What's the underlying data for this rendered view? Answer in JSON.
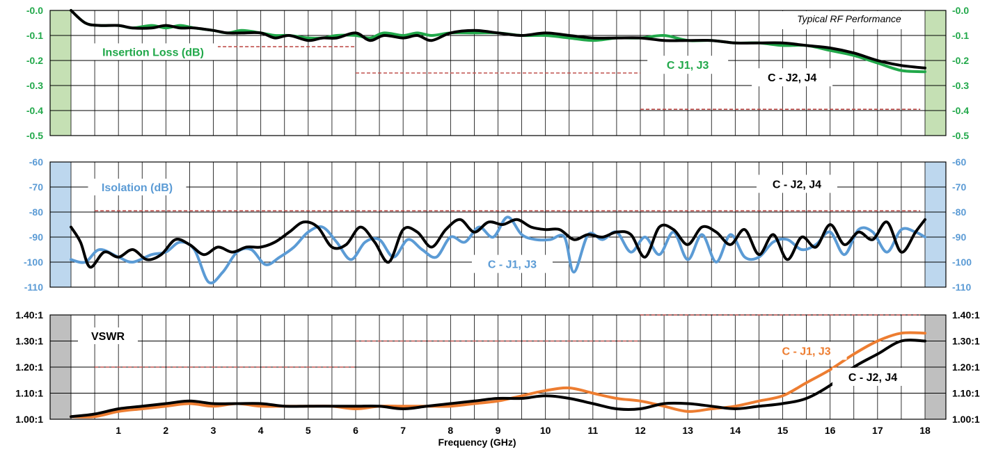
{
  "colors": {
    "green": "#21a84a",
    "blue": "#5b9bd5",
    "orange": "#ed7d31",
    "black": "#000000",
    "spec": "#c0504d",
    "green_band": "#c5e0b4",
    "blue_band": "#bdd7ee",
    "gray_band": "#bfbfbf",
    "tick_green": "#21a84a",
    "tick_blue": "#5b9bd5",
    "tick_black": "#000000"
  },
  "chart_data": [
    {
      "type": "line",
      "annotation": "Typical RF Performance",
      "ylabel": "Insertion Loss (dB)",
      "ylim": [
        -0.5,
        0.0
      ],
      "y_ticks": [
        "-0.0",
        "-0.1",
        "-0.2",
        "-0.3",
        "-0.4",
        "-0.5"
      ],
      "x_range": [
        0,
        18
      ],
      "series": [
        {
          "name": "C J1, J3",
          "color": "green",
          "x": [
            0,
            0.3,
            0.6,
            1,
            1.3,
            1.7,
            2,
            2.3,
            2.6,
            3,
            3.3,
            3.6,
            4,
            4.3,
            4.6,
            5,
            5.3,
            5.6,
            6,
            6.3,
            6.6,
            7,
            7.3,
            7.6,
            8,
            8.5,
            9,
            9.5,
            10,
            10.5,
            11,
            11.5,
            12,
            12.5,
            13,
            13.5,
            14,
            14.5,
            15,
            15.5,
            16,
            16.5,
            17,
            17.5,
            18
          ],
          "y": [
            -0.0,
            -0.05,
            -0.06,
            -0.06,
            -0.07,
            -0.06,
            -0.07,
            -0.06,
            -0.07,
            -0.08,
            -0.09,
            -0.08,
            -0.09,
            -0.1,
            -0.1,
            -0.11,
            -0.11,
            -0.1,
            -0.1,
            -0.11,
            -0.09,
            -0.1,
            -0.09,
            -0.1,
            -0.09,
            -0.09,
            -0.09,
            -0.1,
            -0.1,
            -0.11,
            -0.12,
            -0.11,
            -0.11,
            -0.1,
            -0.12,
            -0.12,
            -0.13,
            -0.13,
            -0.14,
            -0.14,
            -0.16,
            -0.18,
            -0.21,
            -0.24,
            -0.245
          ]
        },
        {
          "name": "C - J2, J4",
          "color": "black",
          "x": [
            0,
            0.3,
            0.6,
            1,
            1.3,
            1.7,
            2,
            2.3,
            2.6,
            3,
            3.3,
            3.6,
            4,
            4.3,
            4.6,
            5,
            5.3,
            5.6,
            6,
            6.3,
            6.6,
            7,
            7.3,
            7.6,
            8,
            8.5,
            9,
            9.5,
            10,
            10.5,
            11,
            11.5,
            12,
            12.5,
            13,
            13.5,
            14,
            14.5,
            15,
            15.5,
            16,
            16.5,
            17,
            17.5,
            18
          ],
          "y": [
            -0.0,
            -0.05,
            -0.06,
            -0.06,
            -0.07,
            -0.07,
            -0.06,
            -0.07,
            -0.07,
            -0.08,
            -0.09,
            -0.09,
            -0.09,
            -0.11,
            -0.1,
            -0.12,
            -0.11,
            -0.11,
            -0.09,
            -0.12,
            -0.1,
            -0.11,
            -0.1,
            -0.12,
            -0.09,
            -0.08,
            -0.09,
            -0.1,
            -0.09,
            -0.1,
            -0.11,
            -0.11,
            -0.11,
            -0.12,
            -0.12,
            -0.12,
            -0.13,
            -0.13,
            -0.13,
            -0.14,
            -0.15,
            -0.17,
            -0.2,
            -0.22,
            -0.23
          ]
        }
      ],
      "spec_lines": [
        {
          "x": [
            0.5,
            6.0
          ],
          "y": -0.145
        },
        {
          "x": [
            6.0,
            12.0
          ],
          "y": -0.25
        },
        {
          "x": [
            12.0,
            17.9
          ],
          "y": -0.395
        }
      ],
      "label_positions": {
        "C J1, J3": [
          13.0,
          -0.22
        ],
        "C - J2, J4": [
          15.2,
          -0.27
        ]
      }
    },
    {
      "type": "line",
      "ylabel": "Isolation (dB)",
      "ylim": [
        -110,
        -60
      ],
      "y_ticks": [
        "-60",
        "-70",
        "-80",
        "-90",
        "-100",
        "-110"
      ],
      "x_range": [
        0,
        18
      ],
      "series": [
        {
          "name": "C - J1, J3",
          "color": "blue",
          "x": [
            0,
            0.3,
            0.6,
            1,
            1.3,
            1.7,
            2,
            2.3,
            2.6,
            2.9,
            3.2,
            3.5,
            3.8,
            4.1,
            4.4,
            4.7,
            5,
            5.3,
            5.6,
            5.9,
            6.2,
            6.5,
            6.8,
            7.1,
            7.4,
            7.7,
            8,
            8.3,
            8.6,
            8.9,
            9.2,
            9.5,
            9.8,
            10.1,
            10.4,
            10.6,
            10.9,
            11.2,
            11.5,
            11.8,
            12.1,
            12.4,
            12.7,
            13,
            13.3,
            13.6,
            13.9,
            14.2,
            14.5,
            14.8,
            15.1,
            15.4,
            15.7,
            16,
            16.3,
            16.6,
            16.9,
            17.2,
            17.5,
            17.8,
            18
          ],
          "y": [
            -99,
            -100,
            -95,
            -98,
            -100,
            -97,
            -96,
            -92,
            -95,
            -108,
            -104,
            -96,
            -95,
            -101,
            -98,
            -94,
            -88,
            -86,
            -92,
            -99,
            -92,
            -91,
            -98,
            -91,
            -95,
            -98,
            -90,
            -92,
            -86,
            -90,
            -82,
            -89,
            -91,
            -91,
            -90,
            -104,
            -89,
            -91,
            -88,
            -96,
            -90,
            -97,
            -88,
            -99,
            -89,
            -100,
            -89,
            -98,
            -98,
            -92,
            -91,
            -95,
            -93,
            -88,
            -97,
            -87,
            -88,
            -96,
            -87,
            -88,
            -90
          ]
        },
        {
          "name": "C - J2, J4",
          "color": "black",
          "x": [
            0,
            0.2,
            0.4,
            0.7,
            1,
            1.3,
            1.6,
            1.9,
            2.2,
            2.5,
            2.8,
            3.1,
            3.4,
            3.7,
            4,
            4.3,
            4.6,
            4.9,
            5.2,
            5.5,
            5.8,
            6.1,
            6.4,
            6.7,
            7,
            7.3,
            7.6,
            7.9,
            8.2,
            8.5,
            8.8,
            9.1,
            9.4,
            9.7,
            10,
            10.3,
            10.6,
            10.9,
            11.2,
            11.5,
            11.8,
            12.1,
            12.4,
            12.7,
            13,
            13.3,
            13.6,
            13.9,
            14.2,
            14.5,
            14.8,
            15.1,
            15.4,
            15.7,
            16,
            16.3,
            16.6,
            16.9,
            17.2,
            17.5,
            17.8,
            18
          ],
          "y": [
            -86,
            -92,
            -102,
            -96,
            -98,
            -95,
            -99,
            -97,
            -91,
            -93,
            -97,
            -94,
            -96,
            -94,
            -94,
            -92,
            -88,
            -84,
            -86,
            -94,
            -93,
            -86,
            -92,
            -100,
            -87,
            -88,
            -94,
            -87,
            -83,
            -88,
            -84,
            -85,
            -83,
            -86,
            -87,
            -87,
            -91,
            -89,
            -90,
            -88,
            -89,
            -98,
            -86,
            -87,
            -93,
            -86,
            -88,
            -93,
            -87,
            -97,
            -89,
            -99,
            -90,
            -94,
            -85,
            -93,
            -88,
            -91,
            -84,
            -96,
            -88,
            -83
          ]
        }
      ],
      "spec_lines": [
        {
          "x": [
            0.5,
            17.9
          ],
          "y": -79.5
        }
      ],
      "label_positions": {
        "C - J1, J3": [
          9.3,
          -101
        ],
        "C - J2, J4": [
          15.3,
          -69
        ]
      }
    },
    {
      "type": "line",
      "ylabel": "VSWR",
      "xlabel": "Frequency (GHz)",
      "ylim": [
        1.0,
        1.4
      ],
      "y_ticks": [
        "1.40:1",
        "1.30:1",
        "1.20:1",
        "1.10:1",
        "1.00:1"
      ],
      "x_ticks": [
        "1",
        "2",
        "3",
        "4",
        "5",
        "6",
        "7",
        "8",
        "9",
        "10",
        "11",
        "12",
        "13",
        "14",
        "15",
        "16",
        "17",
        "18"
      ],
      "x_range": [
        0,
        18
      ],
      "series": [
        {
          "name": "C - J1, J3",
          "color": "orange",
          "x": [
            0,
            0.5,
            1,
            1.5,
            2,
            2.5,
            3,
            3.5,
            4,
            4.5,
            5,
            5.5,
            6,
            6.5,
            7,
            7.5,
            8,
            8.5,
            9,
            9.5,
            10,
            10.5,
            11,
            11.5,
            12,
            12.5,
            13,
            13.5,
            14,
            14.5,
            15,
            15.5,
            16,
            16.5,
            17,
            17.5,
            18
          ],
          "y": [
            1.01,
            1.01,
            1.03,
            1.04,
            1.05,
            1.06,
            1.05,
            1.06,
            1.05,
            1.05,
            1.05,
            1.05,
            1.04,
            1.05,
            1.05,
            1.05,
            1.05,
            1.06,
            1.07,
            1.09,
            1.11,
            1.12,
            1.1,
            1.08,
            1.07,
            1.05,
            1.03,
            1.04,
            1.05,
            1.07,
            1.09,
            1.14,
            1.19,
            1.25,
            1.3,
            1.33,
            1.33
          ]
        },
        {
          "name": "C - J2, J4",
          "color": "black",
          "x": [
            0,
            0.5,
            1,
            1.5,
            2,
            2.5,
            3,
            3.5,
            4,
            4.5,
            5,
            5.5,
            6,
            6.5,
            7,
            7.5,
            8,
            8.5,
            9,
            9.5,
            10,
            10.5,
            11,
            11.5,
            12,
            12.5,
            13,
            13.5,
            14,
            14.5,
            15,
            15.5,
            16,
            16.5,
            17,
            17.5,
            18
          ],
          "y": [
            1.01,
            1.02,
            1.04,
            1.05,
            1.06,
            1.07,
            1.06,
            1.06,
            1.06,
            1.05,
            1.05,
            1.05,
            1.05,
            1.05,
            1.04,
            1.05,
            1.06,
            1.07,
            1.08,
            1.08,
            1.09,
            1.08,
            1.06,
            1.04,
            1.04,
            1.06,
            1.06,
            1.05,
            1.04,
            1.05,
            1.06,
            1.08,
            1.13,
            1.2,
            1.25,
            1.3,
            1.3
          ]
        }
      ],
      "spec_lines": [
        {
          "x": [
            0.5,
            6.0
          ],
          "y": 1.2
        },
        {
          "x": [
            6.0,
            12.0
          ],
          "y": 1.3
        },
        {
          "x": [
            12.0,
            17.9
          ],
          "y": 1.4
        }
      ],
      "label_positions": {
        "C - J1, J3": [
          15.5,
          1.26
        ],
        "C - J2, J4": [
          16.9,
          1.16
        ]
      }
    }
  ]
}
